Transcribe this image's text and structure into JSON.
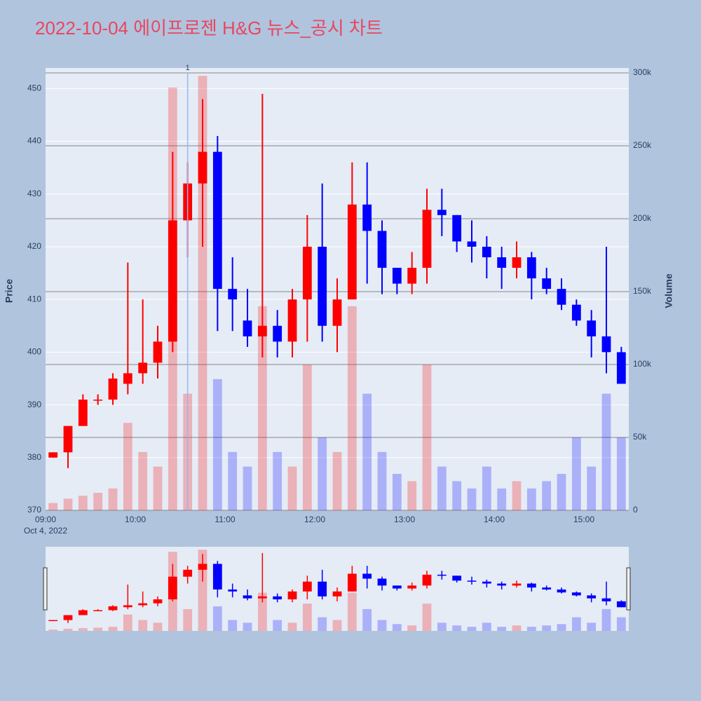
{
  "chart_data": {
    "type": "candlestick",
    "title": "2022-10-04 에이프로젠 H&G 뉴스_공시 차트",
    "x_date_label": "Oct 4, 2022",
    "y_label": "Price",
    "y2_label": "Volume",
    "categories": [
      "09:00",
      "09:10",
      "09:20",
      "09:30",
      "09:40",
      "09:50",
      "10:00",
      "10:10",
      "10:20",
      "10:30",
      "10:40",
      "10:50",
      "11:00",
      "11:10",
      "11:20",
      "11:30",
      "11:40",
      "11:50",
      "12:00",
      "12:10",
      "12:20",
      "12:30",
      "12:40",
      "12:50",
      "13:00",
      "13:10",
      "13:20",
      "13:30",
      "13:40",
      "13:50",
      "14:00",
      "14:10",
      "14:20",
      "14:30",
      "14:40",
      "14:50",
      "15:00",
      "15:10",
      "15:20"
    ],
    "open": [
      380,
      381,
      386,
      391,
      391,
      394,
      396,
      398,
      402,
      425,
      432,
      438,
      412,
      406,
      403,
      405,
      402,
      410,
      420,
      405,
      410,
      428,
      423,
      416,
      413,
      416,
      427,
      426,
      421,
      420,
      418,
      416,
      418,
      414,
      412,
      409,
      406,
      403,
      400
    ],
    "high": [
      381,
      386,
      392,
      392,
      396,
      417,
      410,
      405,
      438,
      436,
      448,
      441,
      418,
      412,
      449,
      408,
      412,
      426,
      432,
      414,
      436,
      436,
      425,
      416,
      419,
      431,
      431,
      426,
      425,
      422,
      420,
      421,
      419,
      416,
      414,
      410,
      408,
      420,
      401
    ],
    "low": [
      380,
      378,
      386,
      390,
      390,
      392,
      394,
      395,
      400,
      418,
      420,
      404,
      404,
      401,
      399,
      399,
      399,
      402,
      402,
      400,
      410,
      413,
      411,
      411,
      411,
      413,
      422,
      419,
      417,
      414,
      412,
      414,
      410,
      411,
      408,
      405,
      399,
      396,
      394
    ],
    "close": [
      381,
      386,
      391,
      391,
      395,
      396,
      398,
      402,
      425,
      432,
      438,
      412,
      410,
      403,
      405,
      402,
      410,
      420,
      405,
      410,
      428,
      423,
      416,
      413,
      416,
      427,
      426,
      421,
      420,
      418,
      416,
      418,
      414,
      412,
      409,
      406,
      403,
      400,
      394
    ],
    "volume": [
      5000,
      8000,
      10000,
      12000,
      15000,
      60000,
      40000,
      30000,
      290000,
      80000,
      298000,
      90000,
      40000,
      30000,
      140000,
      40000,
      30000,
      100000,
      50000,
      40000,
      140000,
      80000,
      40000,
      25000,
      20000,
      100000,
      30000,
      20000,
      15000,
      30000,
      15000,
      20000,
      15000,
      20000,
      25000,
      50000,
      30000,
      80000,
      50000
    ],
    "up_color": "#ff0000",
    "down_color": "#0000ff",
    "xlim": [
      "09:00",
      "15:30"
    ],
    "xticks": [
      "09:00",
      "10:00",
      "11:00",
      "12:00",
      "13:00",
      "14:00",
      "15:00"
    ],
    "ylim": [
      370,
      453.9
    ],
    "yticks": [
      370,
      380,
      390,
      400,
      410,
      420,
      430,
      440,
      450
    ],
    "y2lim": [
      0,
      303365
    ],
    "y2ticks": [
      0,
      {
        "value": 50000,
        "label": "50k"
      },
      {
        "value": 100000,
        "label": "100k"
      },
      {
        "value": 150000,
        "label": "150k"
      },
      {
        "value": 200000,
        "label": "200k"
      },
      {
        "value": 250000,
        "label": "250k"
      },
      {
        "value": 300000,
        "label": "300k"
      }
    ],
    "annotations": [
      {
        "x": "10:35",
        "text": "1"
      }
    ],
    "grid": true,
    "range_slider": true
  }
}
